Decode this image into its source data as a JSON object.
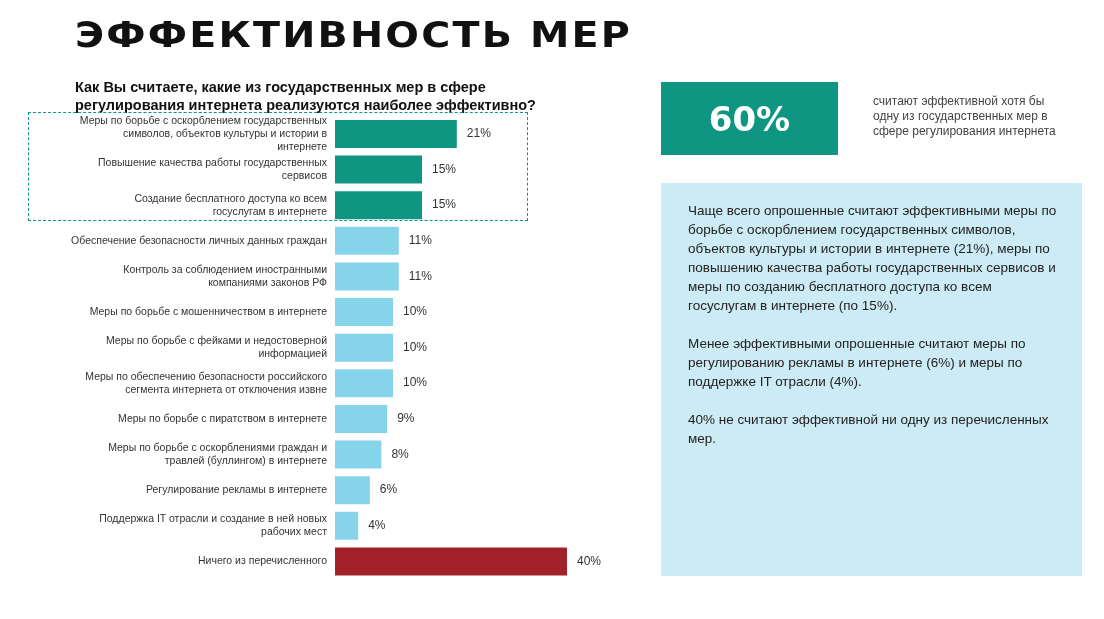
{
  "chart_data": {
    "type": "bar",
    "orientation": "horizontal",
    "title": "ЭФФЕКТИВНОСТЬ МЕР",
    "subtitle": "Как Вы считаете, какие из государственных мер в сфере регулирования интернета реализуются наиболее эффективно?",
    "categories": [
      "Меры по борьбе с оскорблением государственных символов, объектов культуры и истории в интернете",
      "Повышение качества работы государственных сервисов",
      "Создание бесплатного доступа ко всем госуслугам в интернете",
      "Обеспечение безопасности личных данных граждан",
      "Контроль за соблюдением иностранными компаниями законов РФ",
      "Меры по борьбе с мошенничеством в интернете",
      "Меры по борьбе с фейками и недостоверной информацией",
      "Меры по обеспечению безопасности российского сегмента интернета от отключения извне",
      "Меры по борьбе с пиратством в интернете",
      "Меры по борьбе с оскорблениями граждан и травлей (буллингом) в интернете",
      "Регулирование рекламы в интернете",
      "Поддержка IT отрасли и создание в ней новых рабочих мест",
      "Ничего из перечисленного"
    ],
    "values": [
      21,
      15,
      15,
      11,
      11,
      10,
      10,
      10,
      9,
      8,
      6,
      4,
      40
    ],
    "value_labels": [
      "21%",
      "15%",
      "15%",
      "11%",
      "11%",
      "10%",
      "10%",
      "10%",
      "9%",
      "8%",
      "6%",
      "4%",
      "40%"
    ],
    "colors": [
      "#0e9682",
      "#0e9682",
      "#0e9682",
      "#86d4ea",
      "#86d4ea",
      "#86d4ea",
      "#86d4ea",
      "#86d4ea",
      "#86d4ea",
      "#86d4ea",
      "#86d4ea",
      "#86d4ea",
      "#a3222a"
    ],
    "legend": false,
    "grid": false,
    "annotations": [
      "60%",
      "считают эффективной хотя бы одну из государственных мер в сфере регулирования интернета",
      "Чаще всего опрошенные считают эффективными меры по борьбе с оскорблением государственных символов, объектов культуры и истории в интернете (21%), меры по повышению качества работы государственных сервисов и меры по созданию бесплатного доступа ко всем госуслугам в интернете (по 15%).",
      "Менее эффективными опрошенные считают меры по регулированию рекламы в интернете (6%) и меры по поддержке IT отрасли (4%).",
      "40% не считают эффективной ни одну из перечисленных мер."
    ]
  }
}
